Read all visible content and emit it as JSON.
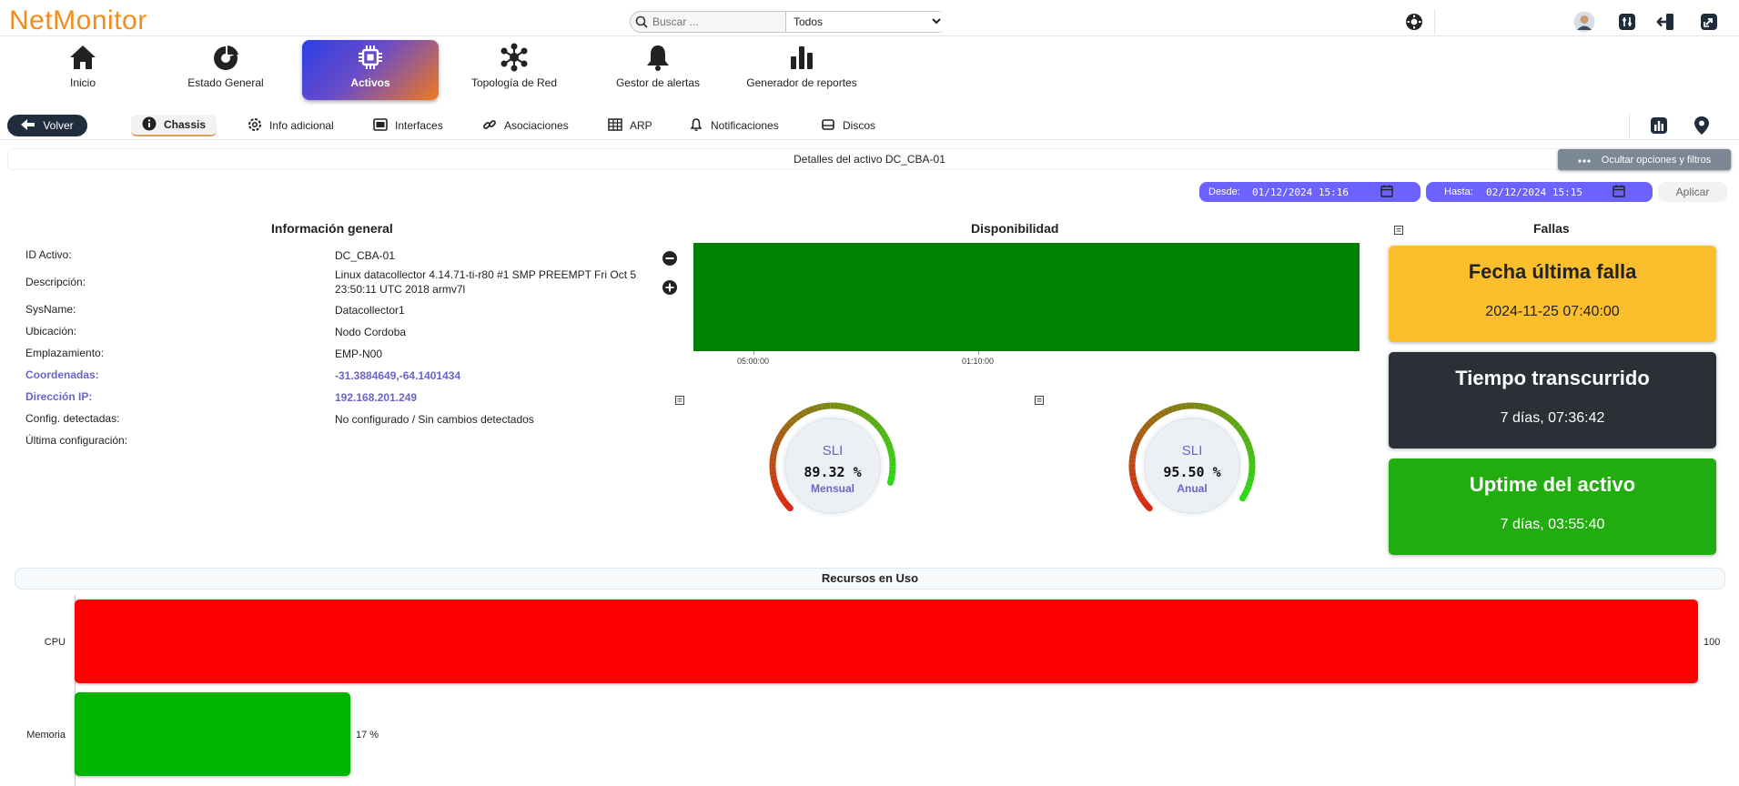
{
  "app": {
    "logo": "NetMonitor"
  },
  "search": {
    "placeholder": "Buscar ...",
    "scope": "Todos"
  },
  "main_nav": [
    {
      "label": "Inicio",
      "icon": "home-icon"
    },
    {
      "label": "Estado General",
      "icon": "pie-chart-icon"
    },
    {
      "label": "Activos",
      "icon": "chip-icon",
      "active": true
    },
    {
      "label": "Topología de Red",
      "icon": "network-icon"
    },
    {
      "label": "Gestor de alertas",
      "icon": "bell-icon"
    },
    {
      "label": "Generador de reportes",
      "icon": "bar-chart-icon"
    }
  ],
  "sub_nav": {
    "back_label": "Volver",
    "tabs": [
      {
        "label": "Chassis",
        "icon": "info-icon",
        "active": true
      },
      {
        "label": "Info adicional",
        "icon": "gear-icon"
      },
      {
        "label": "Interfaces",
        "icon": "interface-icon"
      },
      {
        "label": "Asociaciones",
        "icon": "link-icon"
      },
      {
        "label": "ARP",
        "icon": "table-icon"
      },
      {
        "label": "Notificaciones",
        "icon": "bell-icon"
      },
      {
        "label": "Discos",
        "icon": "disk-icon"
      }
    ]
  },
  "details": {
    "title": "Detalles del activo DC_CBA-01",
    "toggle_filters_label": "Ocultar opciones y filtros"
  },
  "filters": {
    "from_label": "Desde:",
    "from_value": "01/12/2024 15:16",
    "to_label": "Hasta:",
    "to_value": "02/12/2024 15:15",
    "apply_label": "Aplicar"
  },
  "info_general": {
    "title": "Información general",
    "rows": [
      {
        "label": "ID Activo:",
        "value": "DC_CBA-01"
      },
      {
        "label": "Descripción:",
        "value": "Linux datacollector 4.14.71-ti-r80 #1 SMP PREEMPT Fri Oct 5 23:50:11 UTC 2018 armv7l"
      },
      {
        "label": "SysName:",
        "value": "Datacollector1"
      },
      {
        "label": "Ubicación:",
        "value": "Nodo Cordoba"
      },
      {
        "label": "Emplazamiento:",
        "value": "EMP-N00"
      },
      {
        "label": "Coordenadas:",
        "value": "-31.3884649,-64.1401434",
        "link": true
      },
      {
        "label": "Dirección IP:",
        "value": "192.168.201.249",
        "link": true
      },
      {
        "label": "Config. detectadas:",
        "value": "No configurado / Sin cambios detectados"
      },
      {
        "label": "Última configuración:",
        "value": ""
      }
    ]
  },
  "availability": {
    "title": "Disponibilidad",
    "ticks": [
      "05:00:00",
      "01:10:00"
    ],
    "status_color": "#008000"
  },
  "sli": [
    {
      "title": "SLI",
      "value": "89.32 %",
      "value_pct": 89.32,
      "period": "Mensual"
    },
    {
      "title": "SLI",
      "value": "95.50 %",
      "value_pct": 95.5,
      "period": "Anual"
    }
  ],
  "fallas": {
    "title": "Fallas",
    "cards": [
      {
        "title": "Fecha última falla",
        "value": "2024-11-25 07:40:00",
        "color": "#fbbf2e"
      },
      {
        "title": "Tiempo transcurrido",
        "value": "7 días, 07:36:42",
        "color": "#2b2f36"
      },
      {
        "title": "Uptime del activo",
        "value": "7 días, 03:55:40",
        "color": "#21ac0f"
      }
    ]
  },
  "resources": {
    "title": "Recursos en Uso",
    "items": [
      {
        "label": "CPU",
        "value": 100,
        "value_label": "100",
        "color": "#ff0000"
      },
      {
        "label": "Memoria",
        "value": 17,
        "value_label": "17 %",
        "color": "#00b400"
      }
    ]
  }
}
